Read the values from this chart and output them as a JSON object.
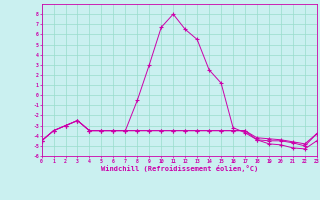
{
  "title": "",
  "xlabel": "Windchill (Refroidissement éolien,°C)",
  "ylabel": "",
  "bg_color": "#caf0f0",
  "grid_color": "#99ddcc",
  "line_color": "#cc00aa",
  "ylim": [
    -6,
    9
  ],
  "xlim": [
    0,
    23
  ],
  "yticks": [
    -6,
    -5,
    -4,
    -3,
    -2,
    -1,
    0,
    1,
    2,
    3,
    4,
    5,
    6,
    7,
    8
  ],
  "xticks": [
    0,
    1,
    2,
    3,
    4,
    5,
    6,
    7,
    8,
    9,
    10,
    11,
    12,
    13,
    14,
    15,
    16,
    17,
    18,
    19,
    20,
    21,
    22,
    23
  ],
  "line1_x": [
    0,
    1,
    2,
    3,
    4,
    5,
    6,
    7,
    8,
    9,
    10,
    11,
    12,
    13,
    14,
    15,
    16,
    17,
    18,
    19,
    20,
    21,
    22,
    23
  ],
  "line1_y": [
    -4.5,
    -3.5,
    -3.0,
    -2.5,
    -3.5,
    -3.5,
    -3.5,
    -3.5,
    -0.5,
    3.0,
    6.7,
    8.0,
    6.5,
    5.5,
    2.5,
    1.2,
    -3.2,
    -3.7,
    -4.4,
    -4.8,
    -4.9,
    -5.2,
    -5.3,
    -4.5
  ],
  "line2_x": [
    0,
    1,
    2,
    3,
    4,
    5,
    6,
    7,
    8,
    9,
    10,
    11,
    12,
    13,
    14,
    15,
    16,
    17,
    18,
    19,
    20,
    21,
    22,
    23
  ],
  "line2_y": [
    -4.5,
    -3.5,
    -3.0,
    -2.5,
    -3.5,
    -3.5,
    -3.5,
    -3.5,
    -3.5,
    -3.5,
    -3.5,
    -3.5,
    -3.5,
    -3.5,
    -3.5,
    -3.5,
    -3.5,
    -3.5,
    -4.2,
    -4.3,
    -4.4,
    -4.6,
    -4.8,
    -3.8
  ],
  "line3_x": [
    0,
    1,
    2,
    3,
    4,
    5,
    6,
    7,
    8,
    9,
    10,
    11,
    12,
    13,
    14,
    15,
    16,
    17,
    18,
    19,
    20,
    21,
    22,
    23
  ],
  "line3_y": [
    -4.5,
    -3.5,
    -3.0,
    -2.5,
    -3.5,
    -3.5,
    -3.5,
    -3.5,
    -3.5,
    -3.5,
    -3.5,
    -3.5,
    -3.5,
    -3.5,
    -3.5,
    -3.5,
    -3.5,
    -3.5,
    -4.4,
    -4.5,
    -4.5,
    -4.7,
    -5.0,
    -3.8
  ]
}
